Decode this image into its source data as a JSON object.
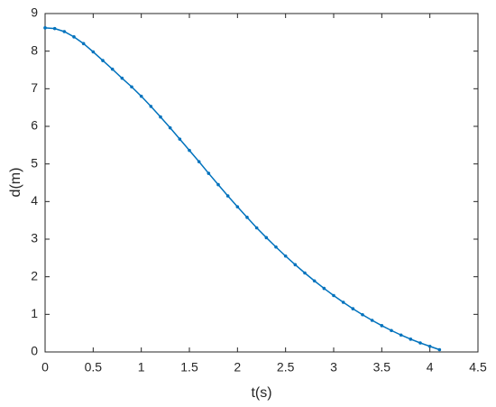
{
  "chart_data": {
    "type": "line",
    "xlabel": "t(s)",
    "ylabel": "d(m)",
    "x": [
      0,
      0.1,
      0.2,
      0.3,
      0.4,
      0.5,
      0.6,
      0.7,
      0.8,
      0.9,
      1.0,
      1.1,
      1.2,
      1.3,
      1.4,
      1.5,
      1.6,
      1.7,
      1.8,
      1.9,
      2.0,
      2.1,
      2.2,
      2.3,
      2.4,
      2.5,
      2.6,
      2.7,
      2.8,
      2.9,
      3.0,
      3.1,
      3.2,
      3.3,
      3.4,
      3.5,
      3.6,
      3.7,
      3.8,
      3.9,
      4.0,
      4.1
    ],
    "values": [
      8.62,
      8.6,
      8.52,
      8.38,
      8.2,
      7.98,
      7.75,
      7.52,
      7.28,
      7.05,
      6.8,
      6.53,
      6.25,
      5.96,
      5.66,
      5.36,
      5.06,
      4.75,
      4.45,
      4.15,
      3.86,
      3.58,
      3.3,
      3.04,
      2.79,
      2.55,
      2.32,
      2.1,
      1.89,
      1.69,
      1.5,
      1.32,
      1.15,
      0.99,
      0.84,
      0.7,
      0.57,
      0.45,
      0.34,
      0.24,
      0.15,
      0.06
    ],
    "color": "#0072bd",
    "xlim": [
      0,
      4.5
    ],
    "xticks": [
      0,
      0.5,
      1,
      1.5,
      2,
      2.5,
      3,
      3.5,
      4,
      4.5
    ],
    "ylim": [
      0,
      9
    ],
    "yticks": [
      0,
      1,
      2,
      3,
      4,
      5,
      6,
      7,
      8,
      9
    ]
  }
}
